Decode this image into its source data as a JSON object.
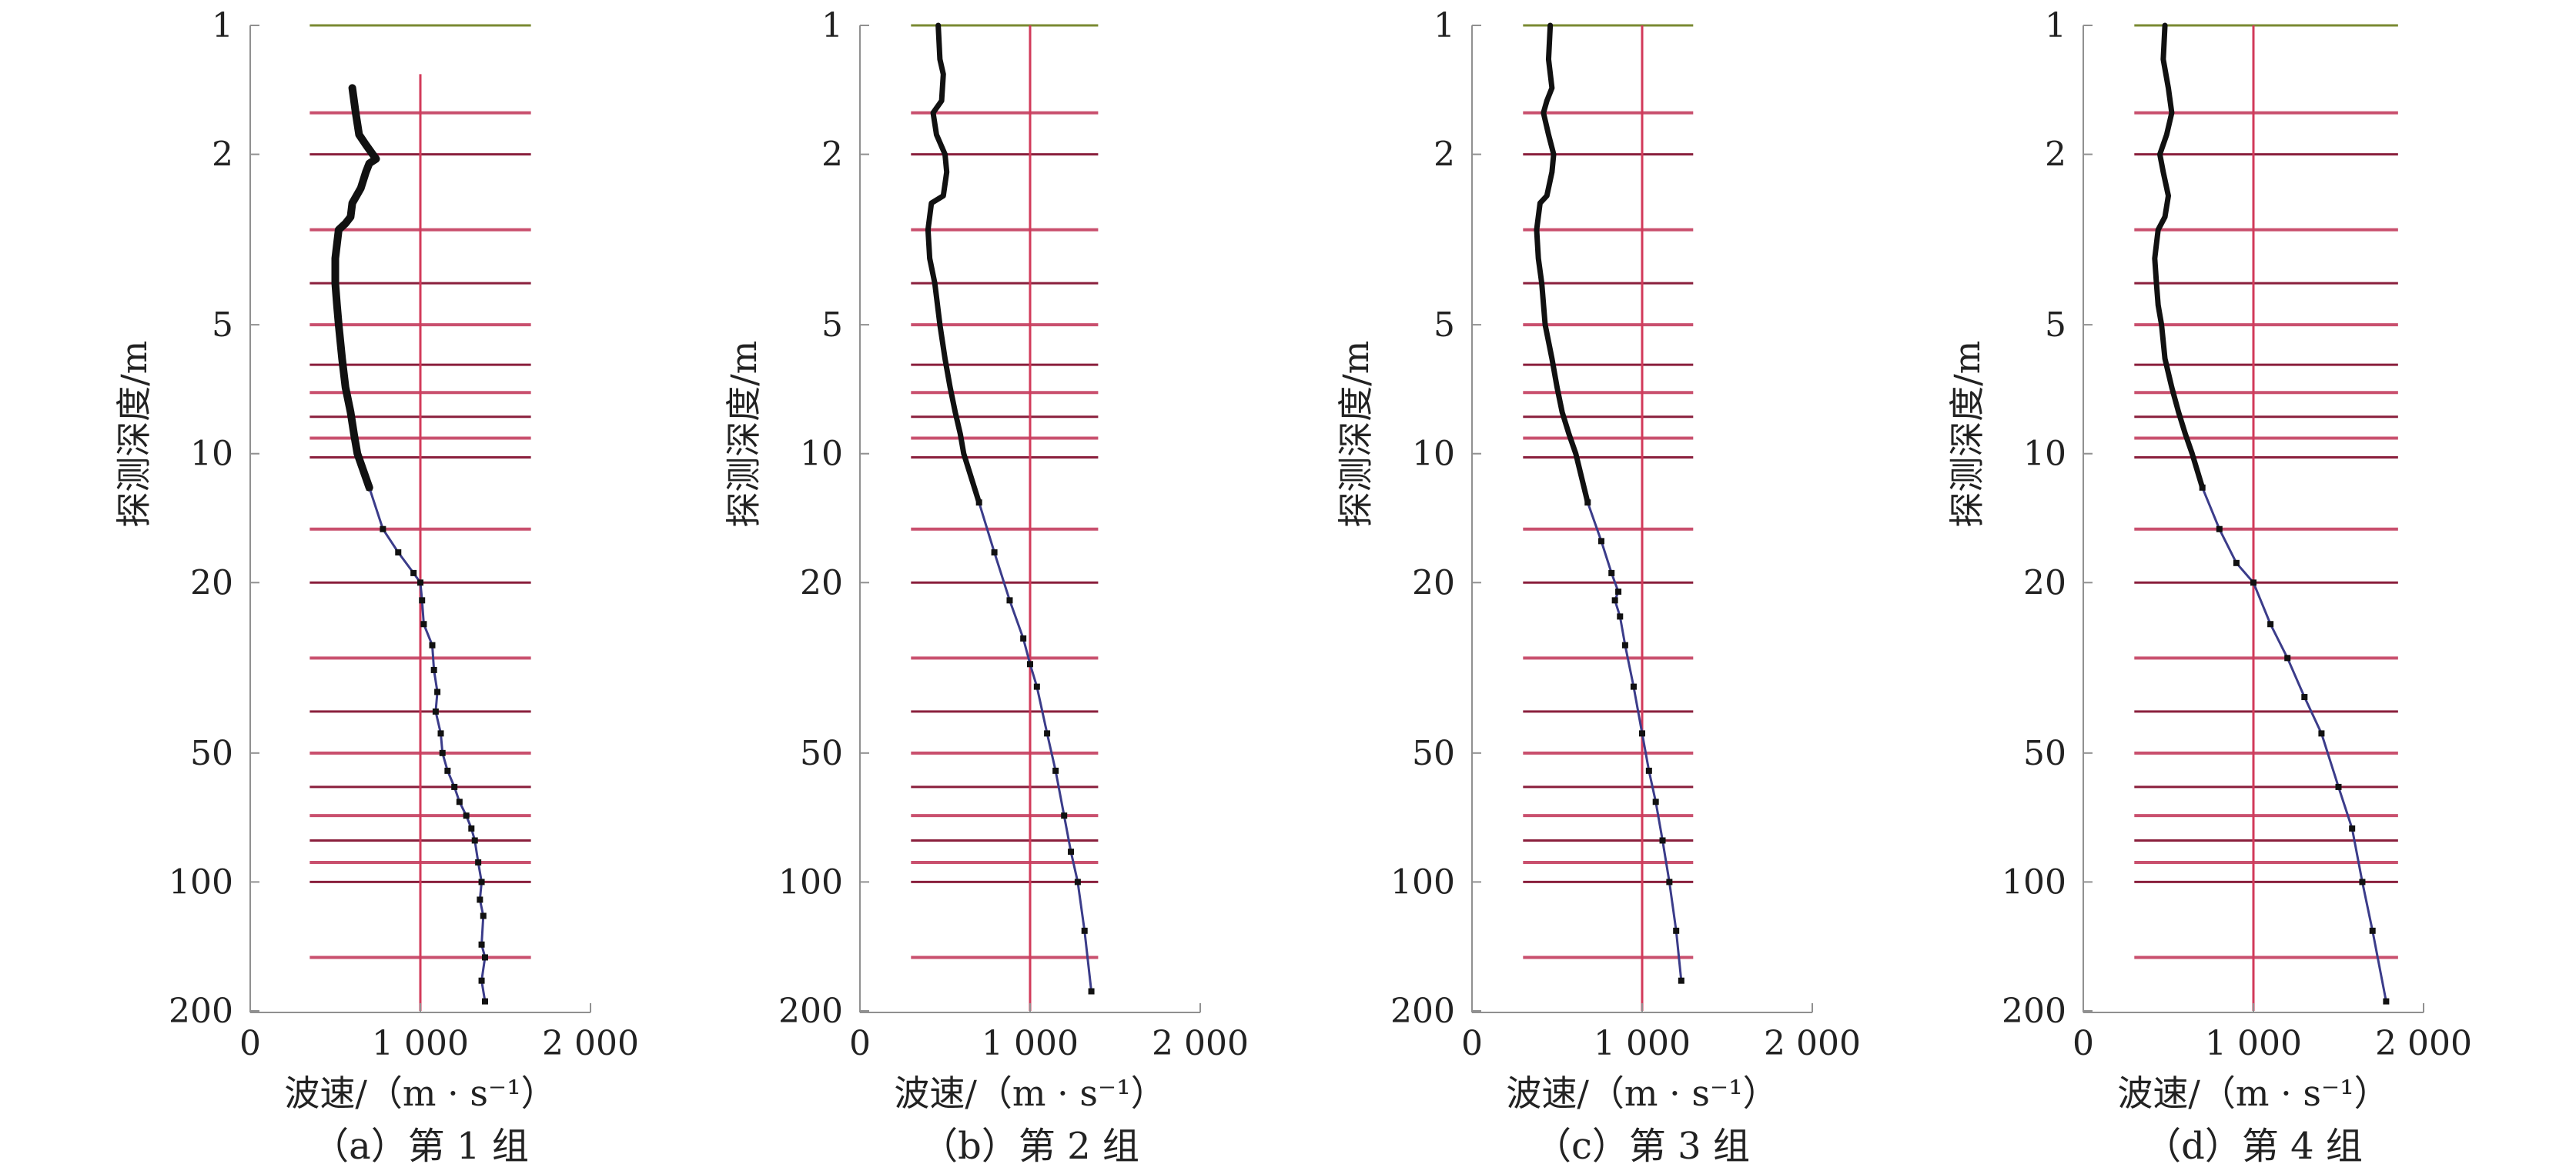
{
  "chart_data": [
    {
      "type": "line",
      "caption": "（a）第 1 组",
      "xlabel": "波速/（m · s⁻¹）",
      "ylabel": "探测深度/m",
      "xlim": [
        0,
        2000
      ],
      "ylim": [
        1,
        200
      ],
      "y_scale": "log",
      "x_ticks": [
        0,
        1000,
        2000
      ],
      "x_tick_labels": [
        "0",
        "1 000",
        "2 000"
      ],
      "y_ticks": [
        1,
        2,
        5,
        10,
        20,
        50,
        100,
        200
      ],
      "y_tick_labels": [
        "1",
        "2",
        "5",
        "10",
        "20",
        "50",
        "100",
        "200"
      ],
      "reference_x": 1000,
      "grid_lines_x_range": [
        350,
        1650
      ],
      "layer_boundaries": [
        1.6,
        2.0,
        3.0,
        4.0,
        5.0,
        6.2,
        7.2,
        8.2,
        9.2,
        10.2,
        15.0,
        20.0,
        30.0,
        40.0,
        50.0,
        60.0,
        70.0,
        80.0,
        90.0,
        100.0,
        150.0
      ],
      "series": [
        {
          "x": [
            600,
            620,
            640,
            680,
            720,
            740,
            700,
            680,
            650,
            600,
            590,
            560,
            520,
            500,
            500,
            510,
            520,
            540,
            560,
            590,
            610,
            630,
            700,
            780,
            870,
            960,
            1000,
            1010,
            1020,
            1070,
            1080,
            1100,
            1090,
            1120,
            1130,
            1160,
            1200,
            1230,
            1270,
            1300,
            1320,
            1340,
            1360,
            1350,
            1370,
            1360,
            1380,
            1360,
            1380
          ],
          "y": [
            1.4,
            1.6,
            1.8,
            1.9,
            2.0,
            2.05,
            2.1,
            2.2,
            2.4,
            2.6,
            2.8,
            2.9,
            3.0,
            3.5,
            4.0,
            4.5,
            5.0,
            6.0,
            7.0,
            8.0,
            9.0,
            10.0,
            12.0,
            15.0,
            17.0,
            19.0,
            20.0,
            22.0,
            25.0,
            28.0,
            32.0,
            36.0,
            40.0,
            45.0,
            50.0,
            55.0,
            60.0,
            65.0,
            70.0,
            75.0,
            80.0,
            90.0,
            100.0,
            110.0,
            120.0,
            140.0,
            150.0,
            170.0,
            190.0
          ]
        }
      ]
    },
    {
      "type": "line",
      "caption": "（b）第 2 组",
      "xlabel": "波速/（m · s⁻¹）",
      "ylabel": "探测深度/m",
      "xlim": [
        0,
        2000
      ],
      "ylim": [
        1,
        200
      ],
      "y_scale": "log",
      "x_ticks": [
        0,
        1000,
        2000
      ],
      "x_tick_labels": [
        "0",
        "1 000",
        "2 000"
      ],
      "y_ticks": [
        1,
        2,
        5,
        10,
        20,
        50,
        100,
        200
      ],
      "y_tick_labels": [
        "1",
        "2",
        "5",
        "10",
        "20",
        "50",
        "100",
        "200"
      ],
      "reference_x": 1000,
      "grid_lines_x_range": [
        300,
        1400
      ],
      "layer_boundaries": [
        1.6,
        2.0,
        3.0,
        4.0,
        5.0,
        6.2,
        7.2,
        8.2,
        9.2,
        10.2,
        15.0,
        20.0,
        30.0,
        40.0,
        50.0,
        60.0,
        70.0,
        80.0,
        90.0,
        100.0,
        150.0
      ],
      "series": [
        {
          "x": [
            460,
            470,
            490,
            480,
            430,
            450,
            500,
            510,
            490,
            420,
            400,
            410,
            440,
            470,
            500,
            530,
            560,
            590,
            610,
            700,
            790,
            880,
            960,
            1000,
            1040,
            1100,
            1150,
            1200,
            1240,
            1280,
            1320,
            1360
          ],
          "y": [
            1.0,
            1.2,
            1.3,
            1.5,
            1.6,
            1.8,
            2.0,
            2.2,
            2.5,
            2.6,
            3.0,
            3.5,
            4.0,
            5.0,
            6.0,
            7.0,
            8.0,
            9.0,
            10.0,
            13.0,
            17.0,
            22.0,
            27.0,
            31.0,
            35.0,
            45.0,
            55.0,
            70.0,
            85.0,
            100.0,
            130.0,
            180.0
          ]
        }
      ]
    },
    {
      "type": "line",
      "caption": "（c）第 3 组",
      "xlabel": "波速/（m · s⁻¹）",
      "ylabel": "探测深度/m",
      "xlim": [
        0,
        2000
      ],
      "ylim": [
        1,
        200
      ],
      "y_scale": "log",
      "x_ticks": [
        0,
        1000,
        2000
      ],
      "x_tick_labels": [
        "0",
        "1 000",
        "2 000"
      ],
      "y_ticks": [
        1,
        2,
        5,
        10,
        20,
        50,
        100,
        200
      ],
      "y_tick_labels": [
        "1",
        "2",
        "5",
        "10",
        "20",
        "50",
        "100",
        "200"
      ],
      "reference_x": 1000,
      "grid_lines_x_range": [
        300,
        1300
      ],
      "layer_boundaries": [
        1.6,
        2.0,
        3.0,
        4.0,
        5.0,
        6.2,
        7.2,
        8.2,
        9.2,
        10.2,
        15.0,
        20.0,
        30.0,
        40.0,
        50.0,
        60.0,
        70.0,
        80.0,
        90.0,
        100.0,
        150.0
      ],
      "series": [
        {
          "x": [
            460,
            450,
            470,
            440,
            420,
            450,
            480,
            470,
            440,
            400,
            380,
            390,
            410,
            430,
            470,
            500,
            530,
            570,
            610,
            680,
            760,
            820,
            860,
            840,
            870,
            900,
            950,
            1000,
            1040,
            1080,
            1120,
            1160,
            1200,
            1230
          ],
          "y": [
            1.0,
            1.2,
            1.4,
            1.5,
            1.6,
            1.8,
            2.0,
            2.2,
            2.5,
            2.6,
            3.0,
            3.5,
            4.0,
            5.0,
            6.0,
            7.0,
            8.0,
            9.0,
            10.0,
            13.0,
            16.0,
            19.0,
            21.0,
            22.0,
            24.0,
            28.0,
            35.0,
            45.0,
            55.0,
            65.0,
            80.0,
            100.0,
            130.0,
            170.0
          ]
        }
      ]
    },
    {
      "type": "line",
      "caption": "（d）第 4 组",
      "xlabel": "波速/（m · s⁻¹）",
      "ylabel": "探测深度/m",
      "xlim": [
        0,
        2000
      ],
      "ylim": [
        1,
        200
      ],
      "y_scale": "log",
      "x_ticks": [
        0,
        1000,
        2000
      ],
      "x_tick_labels": [
        "0",
        "1 000",
        "2 000"
      ],
      "y_ticks": [
        1,
        2,
        5,
        10,
        20,
        50,
        100,
        200
      ],
      "y_tick_labels": [
        "1",
        "2",
        "5",
        "10",
        "20",
        "50",
        "100",
        "200"
      ],
      "reference_x": 1000,
      "grid_lines_x_range": [
        300,
        1850
      ],
      "layer_boundaries": [
        1.6,
        2.0,
        3.0,
        4.0,
        5.0,
        6.2,
        7.2,
        8.2,
        9.2,
        10.2,
        15.0,
        20.0,
        30.0,
        40.0,
        50.0,
        60.0,
        70.0,
        80.0,
        90.0,
        100.0,
        150.0
      ],
      "series": [
        {
          "x": [
            480,
            470,
            500,
            520,
            490,
            450,
            470,
            500,
            480,
            440,
            420,
            430,
            440,
            460,
            480,
            520,
            560,
            600,
            640,
            700,
            800,
            900,
            1000,
            1100,
            1200,
            1300,
            1400,
            1500,
            1580,
            1640,
            1700,
            1780
          ],
          "y": [
            1.0,
            1.2,
            1.4,
            1.6,
            1.8,
            2.0,
            2.2,
            2.5,
            2.8,
            3.0,
            3.5,
            4.0,
            4.5,
            5.0,
            6.0,
            7.0,
            8.0,
            9.0,
            10.0,
            12.0,
            15.0,
            18.0,
            20.0,
            25.0,
            30.0,
            37.0,
            45.0,
            60.0,
            75.0,
            100.0,
            130.0,
            190.0
          ]
        }
      ]
    }
  ]
}
